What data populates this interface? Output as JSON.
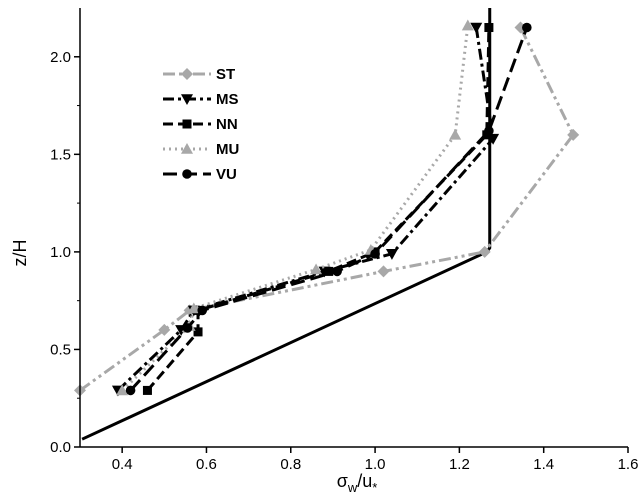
{
  "chart_data": {
    "type": "line",
    "xlabel": "σw/u*",
    "ylabel": "z/H",
    "xlim": [
      0.3,
      1.6
    ],
    "ylim": [
      0.0,
      2.25
    ],
    "x_ticks": [
      "0.4",
      "0.6",
      "0.8",
      "1.0",
      "1.2",
      "1.4",
      "1.6"
    ],
    "y_ticks": [
      "0.0",
      "0.5",
      "1.0",
      "1.5",
      "2.0"
    ],
    "grid": false,
    "legend_position": "top-left",
    "reference_profile": {
      "color": "#000000",
      "points": [
        {
          "x": 0.305,
          "y": 0.04
        },
        {
          "x": 1.265,
          "y": 1.0
        },
        {
          "x": 1.272,
          "y": 1.02
        },
        {
          "x": 1.272,
          "y": 2.25
        }
      ]
    },
    "series": [
      {
        "name": "ST",
        "color": "#a8a8a8",
        "dash": "dashdotdot",
        "marker": "diamond",
        "points": [
          {
            "x": 0.3,
            "y": 0.29
          },
          {
            "x": 0.5,
            "y": 0.6
          },
          {
            "x": 0.56,
            "y": 0.7
          },
          {
            "x": 1.02,
            "y": 0.9
          },
          {
            "x": 1.26,
            "y": 1.0
          },
          {
            "x": 1.47,
            "y": 1.6
          },
          {
            "x": 1.345,
            "y": 2.15
          }
        ]
      },
      {
        "name": "MS",
        "color": "#000000",
        "dash": "dashdot",
        "marker": "triangle-down",
        "points": [
          {
            "x": 0.39,
            "y": 0.29
          },
          {
            "x": 0.54,
            "y": 0.6
          },
          {
            "x": 0.57,
            "y": 0.7
          },
          {
            "x": 0.88,
            "y": 0.9
          },
          {
            "x": 1.04,
            "y": 0.99
          },
          {
            "x": 1.28,
            "y": 1.58
          },
          {
            "x": 1.24,
            "y": 2.15
          }
        ]
      },
      {
        "name": "NN",
        "color": "#000000",
        "dash": "dash",
        "marker": "square",
        "points": [
          {
            "x": 0.46,
            "y": 0.29
          },
          {
            "x": 0.58,
            "y": 0.59
          },
          {
            "x": 0.58,
            "y": 0.7
          },
          {
            "x": 0.89,
            "y": 0.9
          },
          {
            "x": 1.0,
            "y": 1.0
          },
          {
            "x": 1.265,
            "y": 1.6
          },
          {
            "x": 1.27,
            "y": 2.15
          }
        ]
      },
      {
        "name": "MU",
        "color": "#a8a8a8",
        "dash": "dot",
        "marker": "triangle-up",
        "points": [
          {
            "x": 0.4,
            "y": 0.29
          },
          {
            "x": 0.56,
            "y": 0.62
          },
          {
            "x": 0.57,
            "y": 0.71
          },
          {
            "x": 0.86,
            "y": 0.91
          },
          {
            "x": 0.99,
            "y": 1.01
          },
          {
            "x": 1.19,
            "y": 1.6
          },
          {
            "x": 1.22,
            "y": 2.16
          }
        ]
      },
      {
        "name": "VU",
        "color": "#000000",
        "dash": "longdash",
        "marker": "circle",
        "points": [
          {
            "x": 0.42,
            "y": 0.29
          },
          {
            "x": 0.555,
            "y": 0.61
          },
          {
            "x": 0.59,
            "y": 0.7
          },
          {
            "x": 0.91,
            "y": 0.9
          },
          {
            "x": 1.0,
            "y": 0.99
          },
          {
            "x": 1.27,
            "y": 1.62
          },
          {
            "x": 1.36,
            "y": 2.15
          }
        ]
      }
    ]
  }
}
